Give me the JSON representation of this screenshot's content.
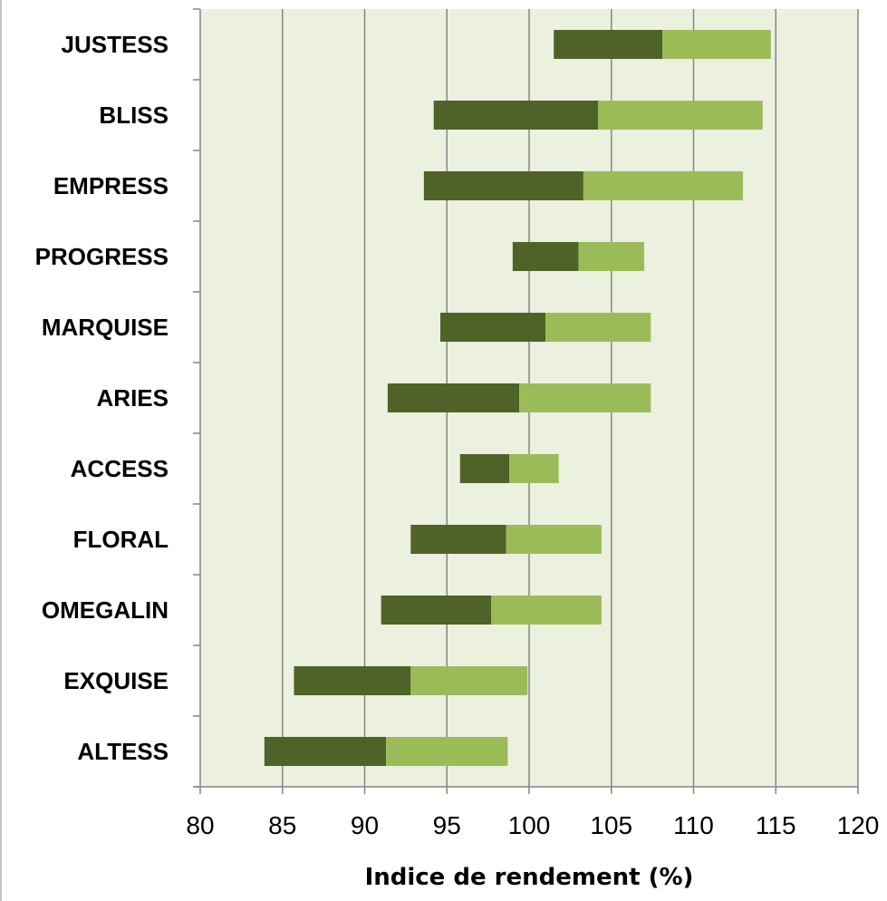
{
  "chart_data": {
    "type": "bar",
    "orientation": "horizontal",
    "stacked": true,
    "title": "",
    "xlabel": "Indice de rendement (%)",
    "ylabel": "",
    "xlim": [
      80,
      120
    ],
    "xticks": [
      80,
      85,
      90,
      95,
      100,
      105,
      110,
      115,
      120
    ],
    "grid": "vertical",
    "legend": "none",
    "categories": [
      "JUSTESS",
      "BLISS",
      "EMPRESS",
      "PROGRESS",
      "MARQUISE",
      "ARIES",
      "ACCESS",
      "FLORAL",
      "OMEGALIN",
      "EXQUISE",
      "ALTESS"
    ],
    "series": [
      {
        "color": "#4f6228",
        "start": [
          101.5,
          94.2,
          93.6,
          99.0,
          94.6,
          91.4,
          95.8,
          92.8,
          91.0,
          85.7,
          83.9
        ],
        "end": [
          108.1,
          104.2,
          103.3,
          103.0,
          101.0,
          99.4,
          98.8,
          98.6,
          97.7,
          92.8,
          91.3
        ]
      },
      {
        "color": "#9bbb59",
        "start": [
          108.1,
          104.2,
          103.3,
          103.0,
          101.0,
          99.4,
          98.8,
          98.6,
          97.7,
          92.8,
          91.3
        ],
        "end": [
          114.7,
          114.2,
          113.0,
          107.0,
          107.4,
          107.4,
          101.8,
          104.4,
          104.4,
          99.9,
          98.7
        ]
      }
    ],
    "plot_background": "#ebf1de"
  }
}
